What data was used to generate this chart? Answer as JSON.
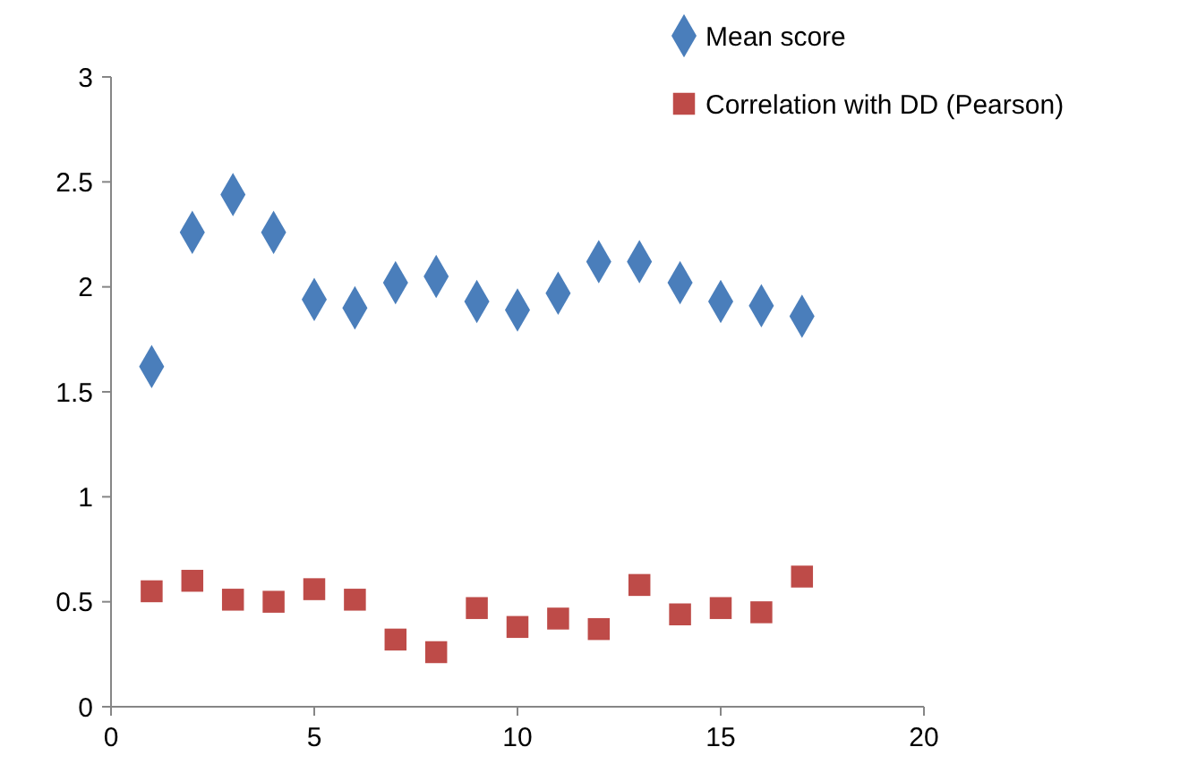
{
  "chart_data": {
    "type": "scatter",
    "x": [
      1,
      2,
      3,
      4,
      5,
      6,
      7,
      8,
      9,
      10,
      11,
      12,
      13,
      14,
      15,
      16,
      17
    ],
    "series": [
      {
        "name": "Mean score",
        "color": "#4a7ebb",
        "marker": "diamond",
        "values": [
          1.62,
          2.26,
          2.44,
          2.26,
          1.94,
          1.9,
          2.02,
          2.05,
          1.93,
          1.89,
          1.97,
          2.12,
          2.12,
          2.02,
          1.93,
          1.91,
          1.86
        ]
      },
      {
        "name": "Correlation with DD (Pearson)",
        "color": "#be4b48",
        "marker": "square",
        "values": [
          0.55,
          0.6,
          0.51,
          0.5,
          0.56,
          0.51,
          0.32,
          0.26,
          0.47,
          0.38,
          0.42,
          0.37,
          0.58,
          0.44,
          0.47,
          0.45,
          0.62
        ]
      }
    ],
    "xlim": [
      0,
      20
    ],
    "xticks": [
      0,
      5,
      10,
      15,
      20
    ],
    "ylim": [
      0,
      3
    ],
    "yticks": [
      0,
      0.5,
      1,
      1.5,
      2,
      2.5,
      3
    ],
    "grid": false,
    "legend": "top right"
  }
}
